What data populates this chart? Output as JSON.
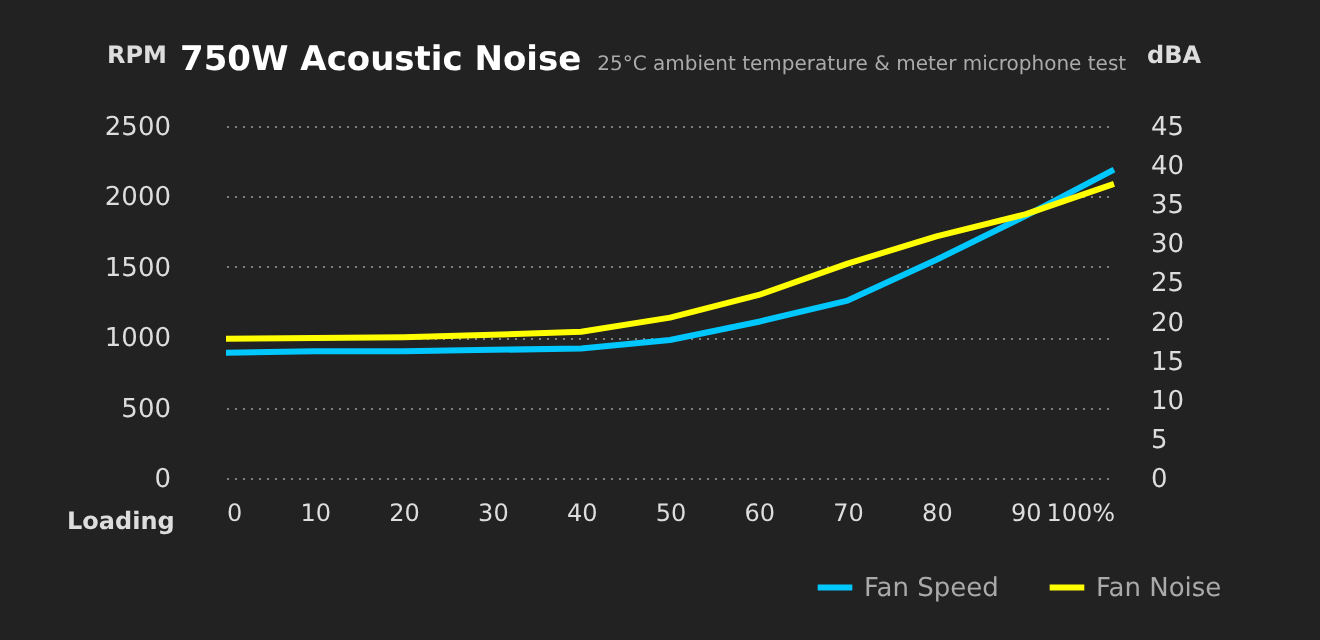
{
  "chart_data": {
    "type": "line",
    "title": "750W Acoustic Noise",
    "subtitle": "25°C ambient temperature & meter microphone test",
    "xlabel": "Loading",
    "ylabel": "RPM",
    "y2label": "dBA",
    "x": [
      0,
      10,
      20,
      30,
      40,
      50,
      60,
      70,
      80,
      90,
      100
    ],
    "series": [
      {
        "name": "Fan Speed",
        "color": "#00c8ff",
        "values": [
          890,
          900,
          900,
          910,
          920,
          980,
          1110,
          1260,
          1550,
          1860,
          2190
        ]
      },
      {
        "name": "Fan Noise",
        "color": "#ffff00",
        "axis": "y2",
        "values": [
          17.8,
          17.9,
          18.0,
          18.3,
          18.7,
          20.5,
          23.4,
          27.4,
          30.9,
          33.7,
          37.6
        ]
      }
    ],
    "xlim": [
      0,
      100
    ],
    "xticks": [
      0,
      10,
      20,
      30,
      40,
      50,
      60,
      70,
      80,
      90,
      {
        "value": 100,
        "label": "100%"
      }
    ],
    "ylim": [
      0,
      2500
    ],
    "yticks": [
      0,
      500,
      1000,
      1500,
      2000,
      2500
    ],
    "y2lim": [
      0,
      45
    ],
    "y2ticks": [
      0,
      5,
      10,
      15,
      20,
      25,
      30,
      35,
      40,
      45
    ],
    "grid": "y",
    "legend": "bottom right",
    "line_style": "solid",
    "marker": "none"
  }
}
